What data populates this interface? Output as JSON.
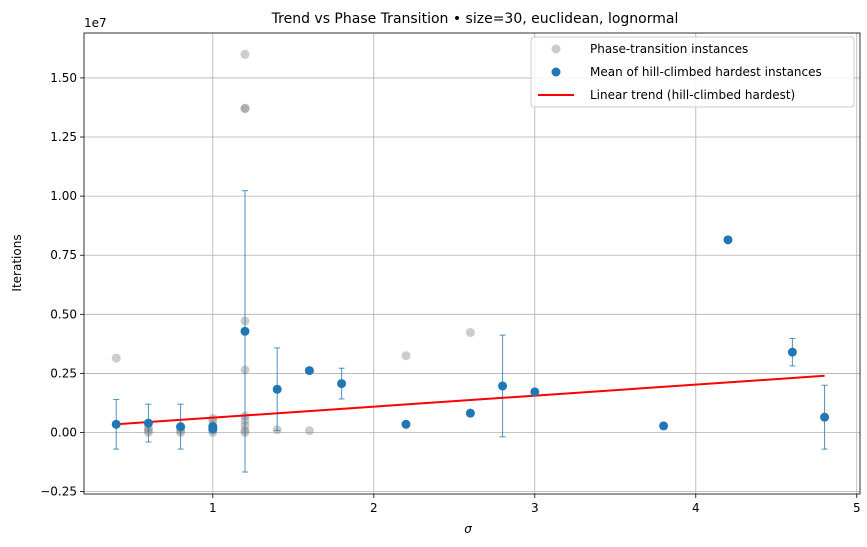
{
  "chart_data": {
    "type": "scatter",
    "title": "Trend vs Phase Transition  •  size=30, euclidean, lognormal",
    "xlabel": "σ",
    "ylabel": "Iterations",
    "y_offset_label": "1e7",
    "y_scale": 10000000,
    "xlim": [
      0.2,
      5.02
    ],
    "ylim": [
      -0.26,
      1.69
    ],
    "x_ticks": [
      1,
      2,
      3,
      4,
      5
    ],
    "y_ticks": [
      -0.25,
      0.0,
      0.25,
      0.5,
      0.75,
      1.0,
      1.25,
      1.5
    ],
    "y_tick_labels": [
      "−0.25",
      "0.00",
      "0.25",
      "0.50",
      "0.75",
      "1.00",
      "1.25",
      "1.50"
    ],
    "grid": true,
    "legend_position": "top-right",
    "series": [
      {
        "name": "Phase-transition instances",
        "kind": "scatter",
        "color": "#808080",
        "points": [
          [
            0.4,
            0.315
          ],
          [
            0.6,
            0.0
          ],
          [
            0.6,
            0.01
          ],
          [
            0.6,
            0.02
          ],
          [
            0.8,
            0.0
          ],
          [
            0.8,
            0.01
          ],
          [
            0.8,
            0.02
          ],
          [
            1.0,
            0.0
          ],
          [
            1.0,
            0.01
          ],
          [
            1.0,
            0.02
          ],
          [
            1.0,
            0.03
          ],
          [
            1.0,
            0.05
          ],
          [
            1.0,
            0.06
          ],
          [
            1.2,
            1.6
          ],
          [
            1.2,
            1.372
          ],
          [
            1.2,
            1.37
          ],
          [
            1.2,
            0.472
          ],
          [
            1.2,
            0.265
          ],
          [
            1.2,
            0.07
          ],
          [
            1.2,
            0.05
          ],
          [
            1.2,
            0.03
          ],
          [
            1.2,
            0.01
          ],
          [
            1.2,
            0.0
          ],
          [
            1.4,
            0.012
          ],
          [
            1.6,
            0.008
          ],
          [
            2.2,
            0.325
          ],
          [
            2.6,
            0.423
          ]
        ]
      },
      {
        "name": "Mean of hill-climbed hardest instances",
        "kind": "errorbar",
        "color": "#1f77b4",
        "points": [
          {
            "x": 0.4,
            "y": 0.035,
            "err": 0.105
          },
          {
            "x": 0.6,
            "y": 0.04,
            "err": 0.08
          },
          {
            "x": 0.8,
            "y": 0.025,
            "err": 0.095
          },
          {
            "x": 1.0,
            "y": 0.015
          },
          {
            "x": 1.0,
            "y": 0.025
          },
          {
            "x": 1.2,
            "y": 0.428,
            "err": 0.595
          },
          {
            "x": 1.4,
            "y": 0.183,
            "err": 0.175
          },
          {
            "x": 1.6,
            "y": 0.262
          },
          {
            "x": 1.8,
            "y": 0.207,
            "err": 0.065
          },
          {
            "x": 2.2,
            "y": 0.035
          },
          {
            "x": 2.6,
            "y": 0.082
          },
          {
            "x": 2.8,
            "y": 0.197,
            "err": 0.215
          },
          {
            "x": 3.0,
            "y": 0.172
          },
          {
            "x": 3.8,
            "y": 0.028
          },
          {
            "x": 4.2,
            "y": 0.815
          },
          {
            "x": 4.6,
            "y": 0.34,
            "err": 0.058
          },
          {
            "x": 4.8,
            "y": 0.065,
            "err": 0.135
          }
        ]
      },
      {
        "name": "Linear trend (hill-climbed hardest)",
        "kind": "line",
        "color": "#ff0000",
        "x": [
          0.4,
          4.8
        ],
        "y": [
          0.035,
          0.24
        ]
      }
    ]
  }
}
